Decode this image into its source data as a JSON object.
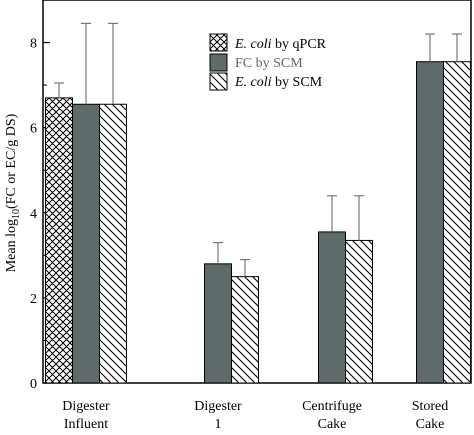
{
  "chart_data": {
    "type": "bar",
    "categories": [
      {
        "line1": "Digester",
        "line2": "Influent"
      },
      {
        "line1": "Digester",
        "line2": "1"
      },
      {
        "line1": "Centrifuge",
        "line2": "Cake"
      },
      {
        "line1": "Stored",
        "line2": "Cake"
      }
    ],
    "ylabel": {
      "prefix": "Mean log",
      "sub": "10",
      "suffix": "(FC or EC/g DS)"
    },
    "ylim": [
      0,
      9
    ],
    "yticks": [
      "0",
      "2",
      "4",
      "6",
      "8"
    ],
    "grid": false,
    "legend_position": "top-center",
    "series": [
      {
        "name_italic": "E. coli",
        "name_rest": " by qPCR",
        "pattern": "crosshatch",
        "color": "#ffffff",
        "values": [
          6.7,
          null,
          null,
          null
        ],
        "errors": [
          0.35,
          null,
          null,
          null
        ]
      },
      {
        "name_italic": "",
        "name_rest": "FC by SCM",
        "pattern": "solid",
        "color": "#5f6b6b",
        "values": [
          6.55,
          2.8,
          3.55,
          7.55
        ],
        "errors": [
          1.9,
          0.5,
          0.85,
          0.65
        ]
      },
      {
        "name_italic": "E. coli",
        "name_rest": " by SCM",
        "pattern": "diagonal",
        "color": "#ffffff",
        "values": [
          6.55,
          2.5,
          3.35,
          7.55
        ],
        "errors": [
          1.9,
          0.4,
          1.05,
          0.65
        ]
      }
    ]
  }
}
